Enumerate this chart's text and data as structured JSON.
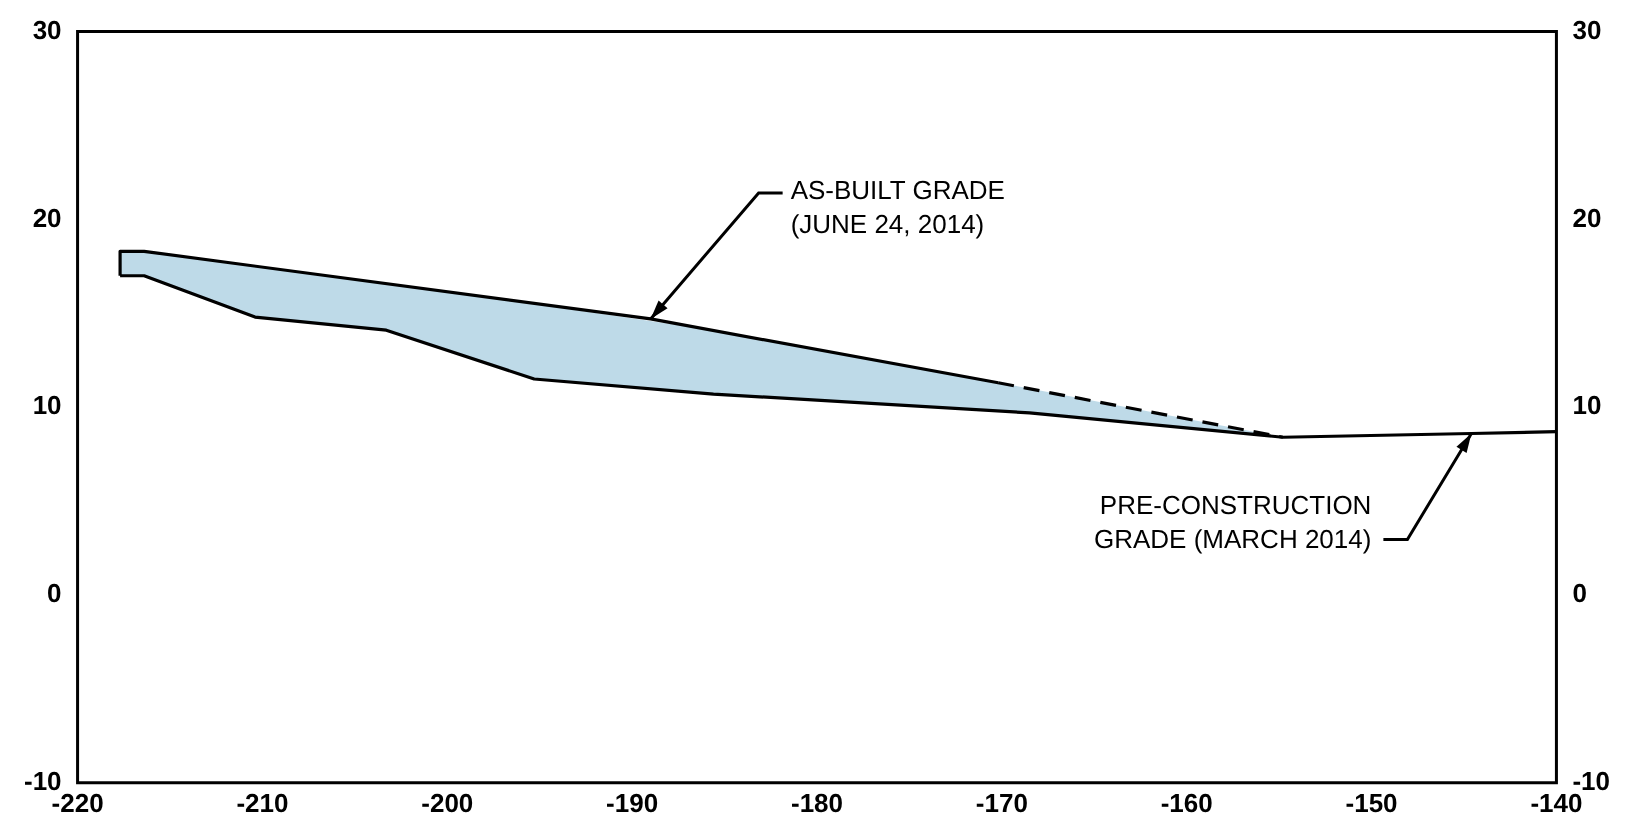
{
  "chart_data": {
    "type": "line",
    "series": [
      {
        "name": null,
        "color": "#000000",
        "line_style": "solid",
        "x": [
          -217.7,
          -217.7,
          -216.4,
          -189.0,
          -170.2
        ],
        "values": [
          17.0,
          18.3,
          18.3,
          14.7,
          11.3
        ]
      },
      {
        "name": null,
        "color": "#000000",
        "line_style": "dashed",
        "x": [
          -170.2,
          -154.8
        ],
        "values": [
          11.3,
          8.4
        ]
      },
      {
        "name": null,
        "color": "#000000",
        "line_style": "solid",
        "x": [
          -217.7,
          -216.4,
          -210.4,
          -203.3,
          -195.3,
          -185.6,
          -168.5,
          -154.8,
          -144.6,
          -140
        ],
        "values": [
          17.0,
          17.0,
          14.8,
          14.1,
          11.5,
          10.7,
          9.7,
          8.4,
          8.6,
          8.7
        ],
        "lower": [
          17.0,
          17.0,
          14.8,
          14.1,
          11.5,
          10.7,
          9.7,
          8.4,
          null,
          null
        ],
        "upper": [
          18.3,
          18.3,
          17.5,
          16.6,
          15.5,
          14.1,
          11.0,
          8.4,
          null,
          null
        ]
      }
    ],
    "xlim": [
      -220,
      -140
    ],
    "xticks": [
      -220,
      -210,
      -200,
      -190,
      -180,
      -170,
      -160,
      -150,
      -140
    ],
    "ylim": [
      -10,
      30
    ],
    "yticks": [
      -10,
      0,
      10,
      20,
      30
    ],
    "y2lim": [
      -10,
      30
    ],
    "y2ticks": [
      -10,
      0,
      10,
      20,
      30
    ],
    "annotations": [
      {
        "text": "AS-BUILT GRADE\n(JUNE 24, 2014)",
        "x": -189.0,
        "y": 14.7
      },
      {
        "text": "PRE-CONSTRUCTION\nGRADE (MARCH 2014)",
        "x": -144.6,
        "y": 8.6
      }
    ],
    "grid": false,
    "legend": false,
    "marker": "none"
  }
}
